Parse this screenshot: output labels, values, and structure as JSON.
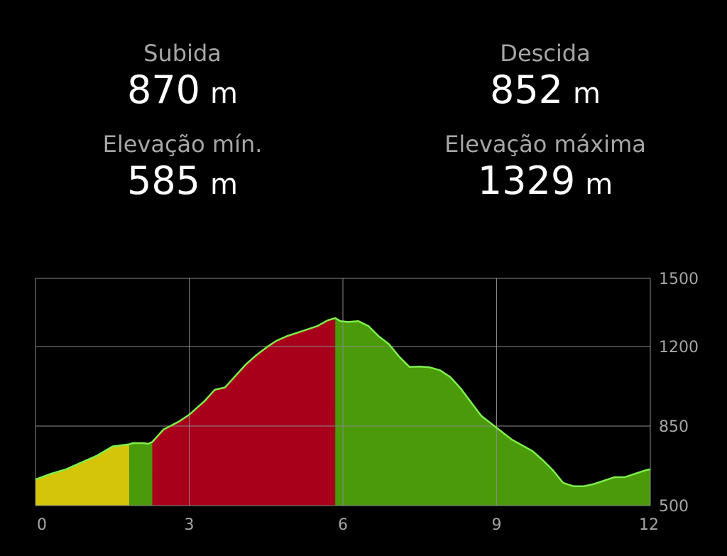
{
  "stats": {
    "ascent": {
      "label": "Subida",
      "value": "870",
      "unit": "m"
    },
    "descent": {
      "label": "Descida",
      "value": "852",
      "unit": "m"
    },
    "min_elev": {
      "label": "Elevação mín.",
      "value": "585",
      "unit": "m"
    },
    "max_elev": {
      "label": "Elevação máxima",
      "value": "1329",
      "unit": "m"
    }
  },
  "chart_data": {
    "type": "area",
    "title": "",
    "xlabel": "",
    "ylabel": "",
    "xlim": [
      0,
      12
    ],
    "ylim": [
      500,
      1500
    ],
    "x_ticks": [
      0,
      3,
      6,
      9,
      12
    ],
    "y_ticks": [
      500,
      850,
      1200,
      1500
    ],
    "grid": true,
    "line_color": "#7ef04a",
    "series": [
      {
        "x": [
          0,
          0.3,
          0.6,
          0.9,
          1.2,
          1.5,
          1.83,
          1.9,
          2.0,
          2.1,
          2.2,
          2.28,
          2.5,
          2.8,
          3.0,
          3.3,
          3.5,
          3.7,
          3.9,
          4.1,
          4.3,
          4.5,
          4.7,
          4.9,
          5.1,
          5.3,
          5.5,
          5.7,
          5.85,
          5.95,
          6.1,
          6.3,
          6.5,
          6.7,
          6.9,
          7.1,
          7.3,
          7.5,
          7.7,
          7.9,
          8.1,
          8.3,
          8.5,
          8.7,
          8.9,
          9.1,
          9.3,
          9.5,
          9.7,
          9.9,
          10.1,
          10.3,
          10.5,
          10.7,
          10.9,
          11.1,
          11.3,
          11.5,
          11.7,
          11.9,
          12.0
        ],
        "y": [
          615,
          640,
          660,
          690,
          720,
          760,
          770,
          775,
          775,
          775,
          772,
          780,
          835,
          870,
          900,
          960,
          1010,
          1020,
          1070,
          1120,
          1160,
          1195,
          1225,
          1245,
          1260,
          1275,
          1290,
          1315,
          1325,
          1312,
          1308,
          1312,
          1290,
          1245,
          1210,
          1155,
          1110,
          1112,
          1108,
          1095,
          1065,
          1015,
          955,
          895,
          860,
          825,
          790,
          765,
          740,
          700,
          655,
          600,
          585,
          585,
          595,
          610,
          625,
          625,
          640,
          655,
          660
        ]
      }
    ],
    "segments": [
      {
        "x_from": 0,
        "x_to": 1.83,
        "color": "#d4c40a"
      },
      {
        "x_from": 1.83,
        "x_to": 2.28,
        "color": "#4a9a0a"
      },
      {
        "x_from": 2.28,
        "x_to": 5.85,
        "color": "#a8001a"
      },
      {
        "x_from": 5.85,
        "x_to": 12,
        "color": "#4a9a0a"
      }
    ]
  }
}
